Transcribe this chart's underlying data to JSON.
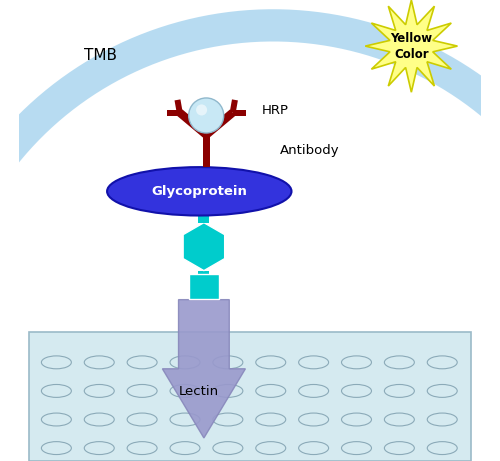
{
  "background_color": "#ffffff",
  "tmb_label": "TMB",
  "hrp_label": "HRP",
  "antibody_label": "Antibody",
  "glycoprotein_label": "Glycoprotein",
  "lectin_label": "Lectin",
  "yellow_color_label": "Yellow\nColor",
  "glycoprotein_color": "#3333dd",
  "glycoprotein_text_color": "#ffffff",
  "teal_color": "#00cccc",
  "lectin_color": "#9999cc",
  "antibody_color": "#8b0000",
  "hrp_color": "#c8e8f5",
  "hrp_edge_color": "#90b8cc",
  "plate_fill": "#d5eaf0",
  "plate_edge": "#9bbac8",
  "oval_edge": "#8baab8",
  "star_fill": "#ffff88",
  "star_edge": "#cccc00",
  "arrow_fill": "#b0d8f0",
  "arrow_edge": "#70b0d8",
  "figw": 5.0,
  "figh": 4.61,
  "dpi": 100
}
